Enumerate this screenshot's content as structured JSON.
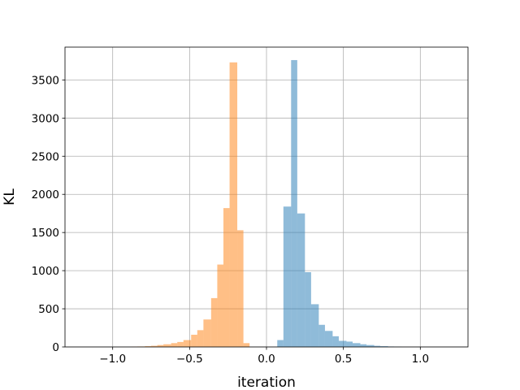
{
  "chart_data": {
    "type": "bar",
    "title": "",
    "xlabel": "iteration",
    "ylabel": "KL",
    "xlim": [
      -1.31,
      1.31
    ],
    "ylim": [
      0,
      3930
    ],
    "grid": true,
    "x_ticks": [
      -1.0,
      -0.5,
      0.0,
      0.5,
      1.0
    ],
    "x_tick_labels": [
      "−1.0",
      "−0.5",
      "0.0",
      "0.5",
      "1.0"
    ],
    "y_ticks": [
      0,
      500,
      1000,
      1500,
      2000,
      2500,
      3000,
      3500
    ],
    "y_tick_labels": [
      "0",
      "500",
      "1000",
      "1500",
      "2000",
      "2500",
      "3000",
      "3500"
    ],
    "series": [
      {
        "color": "#1f77b4",
        "alpha": 0.5,
        "bins": [
          {
            "x0": 0.07,
            "x1": 0.11,
            "count": 90
          },
          {
            "x0": 0.11,
            "x1": 0.16,
            "count": 1840
          },
          {
            "x0": 0.16,
            "x1": 0.2,
            "count": 3760
          },
          {
            "x0": 0.2,
            "x1": 0.25,
            "count": 1750
          },
          {
            "x0": 0.25,
            "x1": 0.29,
            "count": 980
          },
          {
            "x0": 0.29,
            "x1": 0.34,
            "count": 560
          },
          {
            "x0": 0.34,
            "x1": 0.38,
            "count": 290
          },
          {
            "x0": 0.38,
            "x1": 0.43,
            "count": 210
          },
          {
            "x0": 0.43,
            "x1": 0.47,
            "count": 140
          },
          {
            "x0": 0.47,
            "x1": 0.52,
            "count": 80
          },
          {
            "x0": 0.52,
            "x1": 0.56,
            "count": 70
          },
          {
            "x0": 0.56,
            "x1": 0.61,
            "count": 50
          },
          {
            "x0": 0.61,
            "x1": 0.65,
            "count": 35
          },
          {
            "x0": 0.65,
            "x1": 0.7,
            "count": 25
          },
          {
            "x0": 0.7,
            "x1": 0.74,
            "count": 15
          },
          {
            "x0": 0.74,
            "x1": 0.79,
            "count": 10
          },
          {
            "x0": 0.79,
            "x1": 0.83,
            "count": 6
          },
          {
            "x0": 0.83,
            "x1": 0.88,
            "count": 3
          }
        ]
      },
      {
        "color": "#ff7f0e",
        "alpha": 0.5,
        "bins": [
          {
            "x0": -0.88,
            "x1": -0.84,
            "count": 3
          },
          {
            "x0": -0.84,
            "x1": -0.79,
            "count": 6
          },
          {
            "x0": -0.79,
            "x1": -0.75,
            "count": 10
          },
          {
            "x0": -0.75,
            "x1": -0.71,
            "count": 15
          },
          {
            "x0": -0.71,
            "x1": -0.67,
            "count": 25
          },
          {
            "x0": -0.67,
            "x1": -0.62,
            "count": 35
          },
          {
            "x0": -0.62,
            "x1": -0.58,
            "count": 50
          },
          {
            "x0": -0.58,
            "x1": -0.54,
            "count": 65
          },
          {
            "x0": -0.54,
            "x1": -0.49,
            "count": 90
          },
          {
            "x0": -0.49,
            "x1": -0.45,
            "count": 160
          },
          {
            "x0": -0.45,
            "x1": -0.41,
            "count": 220
          },
          {
            "x0": -0.41,
            "x1": -0.36,
            "count": 360
          },
          {
            "x0": -0.36,
            "x1": -0.32,
            "count": 640
          },
          {
            "x0": -0.32,
            "x1": -0.28,
            "count": 1080
          },
          {
            "x0": -0.28,
            "x1": -0.24,
            "count": 1820
          },
          {
            "x0": -0.24,
            "x1": -0.19,
            "count": 3730
          },
          {
            "x0": -0.19,
            "x1": -0.15,
            "count": 1530
          },
          {
            "x0": -0.15,
            "x1": -0.11,
            "count": 50
          }
        ]
      }
    ]
  }
}
